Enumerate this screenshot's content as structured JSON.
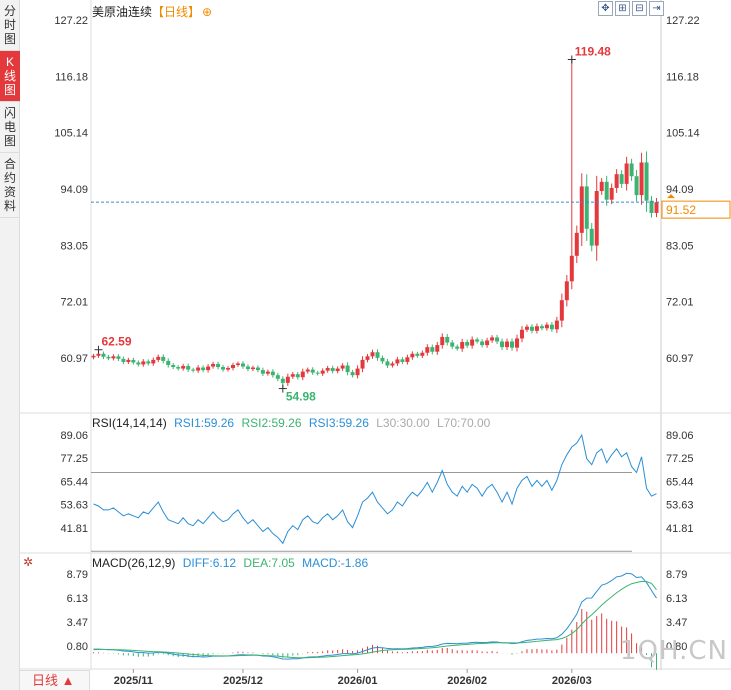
{
  "sidebar": {
    "tabs": [
      {
        "label": "分\n时\n图",
        "active": false
      },
      {
        "label": "K\n线\n图",
        "active": true
      },
      {
        "label": "闪\n电\n图",
        "active": false
      },
      {
        "label": "合\n约\n资\n料",
        "active": false
      }
    ]
  },
  "header": {
    "title": "美原油连续",
    "period": "【日线】",
    "plus_icon": "⊕"
  },
  "toolbar": {
    "buttons": [
      "fullscreen-icon",
      "zoom-in-icon",
      "zoom-out-icon",
      "move-right-icon"
    ]
  },
  "period_button": {
    "label": "日线 ▲"
  },
  "watermark": "1QH.CN",
  "colors": {
    "up": "#e4393c",
    "down": "#3cb371",
    "rsi": "#2b8fd6",
    "diff": "#2b8fd6",
    "dea": "#3cb371",
    "current_line": "#3a8cc9",
    "current_label": "#f08a00"
  },
  "rsi_legend": {
    "label": "RSI(14,14,14)",
    "rsi1": "RSI1:59.26",
    "rsi2": "RSI2:59.26",
    "rsi3": "RSI3:59.26",
    "l30": "L30:30.00",
    "l70": "L70:70.00"
  },
  "macd_legend": {
    "label": "MACD(26,12,9)",
    "diff": "DIFF:6.12",
    "dea": "DEA:7.05",
    "macd": "MACD:-1.86"
  },
  "chart_data": [
    {
      "type": "candlestick",
      "ylim": [
        54,
        128
      ],
      "y_ticks": [
        "127.22",
        "116.18",
        "105.14",
        "94.09",
        "83.05",
        "72.01",
        "60.97"
      ],
      "x_ticks": [
        "2025/11",
        "2025/12",
        "2026/01",
        "2026/02",
        "2026/03"
      ],
      "x_tick_index": [
        8,
        30,
        53,
        75,
        96
      ],
      "current_price": 91.52,
      "current_price_label": "91.52",
      "annotations": [
        {
          "label": "119.48",
          "value": 119.48,
          "index": 96
        },
        {
          "label": "62.59",
          "value": 62.59,
          "index": 1
        },
        {
          "label": "54.98",
          "value": 54.98,
          "index": 38
        }
      ],
      "close": [
        61.4,
        61.8,
        61.2,
        60.9,
        61.3,
        60.8,
        60.2,
        60.6,
        60.1,
        59.7,
        60.3,
        59.9,
        60.6,
        61.2,
        60.4,
        59.6,
        59.2,
        58.9,
        59.4,
        58.7,
        58.5,
        59.1,
        58.6,
        59.3,
        59.8,
        59.2,
        58.7,
        59.0,
        59.6,
        59.9,
        59.3,
        58.8,
        59.1,
        58.6,
        57.9,
        58.3,
        57.6,
        56.9,
        56.1,
        57.3,
        57.8,
        57.2,
        58.3,
        58.7,
        58.1,
        57.9,
        58.5,
        59.0,
        58.4,
        58.9,
        59.5,
        58.2,
        57.6,
        58.9,
        60.6,
        61.3,
        62.1,
        61.0,
        60.3,
        59.5,
        59.9,
        60.7,
        60.2,
        61.1,
        61.8,
        61.4,
        62.0,
        63.1,
        62.2,
        63.5,
        65.1,
        64.0,
        63.2,
        62.8,
        64.1,
        63.4,
        64.6,
        64.2,
        63.5,
        64.4,
        65.0,
        64.2,
        63.1,
        64.2,
        63.0,
        64.8,
        66.5,
        67.1,
        66.3,
        67.2,
        66.8,
        67.5,
        66.6,
        68.3,
        72.3,
        76.0,
        81.0,
        85.5,
        94.6,
        86.3,
        83.0,
        93.7,
        95.5,
        92.0,
        94.3,
        97.0,
        95.1,
        99.1,
        96.6,
        92.9,
        99.3,
        91.8,
        89.4,
        91.5
      ],
      "rsi": [
        54,
        53,
        51,
        51,
        52,
        50,
        48,
        49,
        48,
        47,
        50,
        49,
        52,
        55,
        50,
        46,
        45,
        44,
        47,
        44,
        43,
        46,
        44,
        47,
        50,
        47,
        45,
        46,
        49,
        51,
        47,
        44,
        46,
        43,
        40,
        42,
        39,
        37,
        34,
        40,
        43,
        41,
        46,
        48,
        45,
        44,
        47,
        49,
        46,
        48,
        51,
        45,
        42,
        48,
        55,
        57,
        60,
        55,
        52,
        49,
        51,
        55,
        53,
        57,
        60,
        58,
        61,
        65,
        60,
        65,
        71,
        64,
        60,
        58,
        63,
        60,
        64,
        62,
        58,
        62,
        64,
        60,
        55,
        60,
        54,
        62,
        66,
        68,
        63,
        66,
        63,
        66,
        61,
        66,
        74,
        79,
        83,
        85,
        89,
        77,
        74,
        80,
        82,
        75,
        79,
        82,
        78,
        80,
        73,
        70,
        78,
        62,
        58,
        59.26
      ],
      "diff": [
        0.45,
        0.46,
        0.43,
        0.39,
        0.38,
        0.33,
        0.25,
        0.22,
        0.15,
        0.07,
        0.06,
        0.01,
        0.03,
        0.1,
        0.08,
        0.0,
        -0.1,
        -0.2,
        -0.23,
        -0.31,
        -0.38,
        -0.38,
        -0.42,
        -0.39,
        -0.33,
        -0.31,
        -0.32,
        -0.31,
        -0.25,
        -0.18,
        -0.17,
        -0.2,
        -0.19,
        -0.23,
        -0.31,
        -0.33,
        -0.4,
        -0.5,
        -0.64,
        -0.65,
        -0.61,
        -0.62,
        -0.53,
        -0.44,
        -0.41,
        -0.39,
        -0.33,
        -0.24,
        -0.21,
        -0.14,
        -0.05,
        -0.04,
        -0.07,
        0.01,
        0.19,
        0.38,
        0.58,
        0.63,
        0.61,
        0.53,
        0.48,
        0.5,
        0.48,
        0.51,
        0.58,
        0.6,
        0.65,
        0.75,
        0.76,
        0.84,
        1.02,
        1.09,
        1.08,
        1.05,
        1.11,
        1.12,
        1.19,
        1.21,
        1.18,
        1.2,
        1.26,
        1.24,
        1.15,
        1.15,
        1.06,
        1.11,
        1.27,
        1.43,
        1.48,
        1.56,
        1.58,
        1.63,
        1.61,
        1.71,
        2.11,
        2.71,
        3.49,
        4.35,
        5.69,
        6.12,
        6.13,
        6.85,
        7.55,
        7.73,
        8.07,
        8.48,
        8.57,
        8.87,
        8.81,
        8.4,
        8.47,
        7.84,
        6.96,
        6.12
      ],
      "dea": [
        0.4,
        0.41,
        0.41,
        0.41,
        0.4,
        0.39,
        0.37,
        0.34,
        0.31,
        0.27,
        0.24,
        0.2,
        0.17,
        0.16,
        0.14,
        0.11,
        0.07,
        0.02,
        -0.03,
        -0.09,
        -0.15,
        -0.19,
        -0.24,
        -0.27,
        -0.28,
        -0.29,
        -0.3,
        -0.3,
        -0.29,
        -0.27,
        -0.25,
        -0.24,
        -0.23,
        -0.23,
        -0.25,
        -0.27,
        -0.29,
        -0.33,
        -0.39,
        -0.44,
        -0.48,
        -0.51,
        -0.51,
        -0.5,
        -0.48,
        -0.46,
        -0.43,
        -0.4,
        -0.36,
        -0.32,
        -0.27,
        -0.22,
        -0.19,
        -0.15,
        -0.08,
        0.01,
        0.12,
        0.22,
        0.3,
        0.35,
        0.38,
        0.41,
        0.43,
        0.44,
        0.47,
        0.49,
        0.53,
        0.57,
        0.61,
        0.66,
        0.73,
        0.8,
        0.86,
        0.9,
        0.94,
        0.98,
        1.02,
        1.06,
        1.08,
        1.11,
        1.14,
        1.16,
        1.16,
        1.16,
        1.14,
        1.14,
        1.16,
        1.21,
        1.26,
        1.32,
        1.37,
        1.42,
        1.46,
        1.51,
        1.63,
        1.85,
        2.18,
        2.62,
        3.23,
        3.81,
        4.27,
        4.79,
        5.34,
        5.82,
        6.27,
        6.71,
        7.09,
        7.44,
        7.71,
        7.85,
        7.97,
        7.94,
        7.74,
        7.05
      ]
    }
  ]
}
